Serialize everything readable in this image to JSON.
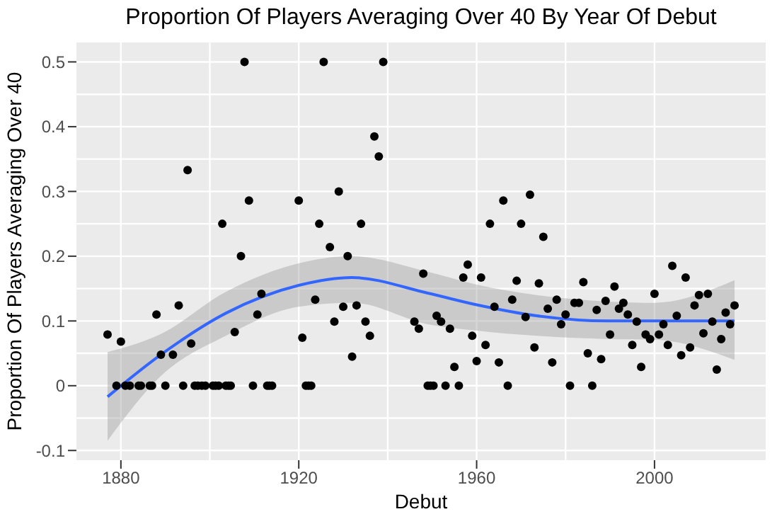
{
  "chart_data": {
    "type": "scatter",
    "title": "Proportion Of Players Averaging Over 40 By Year Of Debut",
    "xlabel": "Debut",
    "ylabel": "Proportion Of Players Averaging Over 40",
    "xlim": [
      1870,
      2025
    ],
    "xticks": [
      1880,
      1920,
      1960,
      2000
    ],
    "ylim": [
      -0.115,
      0.53
    ],
    "yticks": [
      -0.1,
      0,
      0.1,
      0.2,
      0.3,
      0.4,
      0.5
    ],
    "grid": true,
    "marker": "circle",
    "series": [
      {
        "color": "#000000",
        "x": [
          1877,
          1880,
          1879,
          1881,
          1882,
          1884,
          1884.5,
          1886.5,
          1887,
          1890,
          1894,
          1896.6,
          1897.3,
          1898.2,
          1899,
          1900.7,
          1901.3,
          1902,
          1903.6,
          1904.2,
          1904.7,
          1909.7,
          1912.9,
          1913.4,
          1914,
          1921.6,
          1922.2,
          1922.8,
          1888,
          1889,
          1891.7,
          1893,
          1895,
          1895.8,
          1902.8,
          1905.6,
          1907,
          1907.8,
          1908.8,
          1910.7,
          1911.6,
          1920,
          1920.8,
          1923.7,
          1924.6,
          1925.6,
          1927,
          1928,
          1929,
          1930,
          1931,
          1932,
          1933,
          1934,
          1935,
          1936,
          1937,
          1938,
          1939,
          1946,
          1947,
          1948,
          1949,
          1949.6,
          1950.3,
          1951,
          1952,
          1953,
          1954,
          1955,
          1956,
          1957,
          1958,
          1959,
          1960,
          1961,
          1962,
          1963,
          1964,
          1965,
          1966,
          1967,
          1968,
          1969,
          1970,
          1971,
          1972,
          1973,
          1974,
          1975,
          1976,
          1977,
          1978,
          1979,
          1980,
          1981,
          1982,
          1983,
          1984,
          1985,
          1986,
          1987,
          1988,
          1989,
          1990,
          1991,
          1992,
          1993,
          1994,
          1995,
          1996,
          1997,
          1998,
          1999,
          2000,
          2001,
          2002,
          2003,
          2004,
          2005,
          2006,
          2007,
          2008,
          2009,
          2010,
          2011,
          2012,
          2013,
          2014,
          2015,
          2016,
          2017,
          2018
        ],
        "values": [
          0.079,
          0.068,
          0,
          0,
          0,
          0,
          0,
          0,
          0,
          0,
          0,
          0,
          0,
          0,
          0,
          0,
          0,
          0,
          0,
          0,
          0,
          0,
          0,
          0,
          0,
          0,
          0,
          0,
          0.11,
          0.048,
          0.048,
          0.124,
          0.333,
          0.065,
          0.25,
          0.083,
          0.2,
          0.5,
          0.286,
          0.11,
          0.142,
          0.286,
          0.074,
          0.133,
          0.25,
          0.5,
          0.214,
          0.099,
          0.3,
          0.122,
          0.2,
          0.045,
          0.124,
          0.25,
          0.099,
          0.077,
          0.385,
          0.354,
          0.5,
          0.099,
          0.088,
          0.173,
          0,
          0,
          0,
          0.108,
          0.099,
          0,
          0.088,
          0.029,
          0,
          0.167,
          0.187,
          0.077,
          0.038,
          0.167,
          0.063,
          0.25,
          0.122,
          0.036,
          0.286,
          0,
          0.133,
          0.162,
          0.25,
          0.106,
          0.295,
          0.059,
          0.158,
          0.23,
          0.119,
          0.036,
          0.133,
          0.095,
          0.11,
          0,
          0.128,
          0.128,
          0.16,
          0.05,
          0,
          0.117,
          0.041,
          0.131,
          0.079,
          0.153,
          0.119,
          0.128,
          0.11,
          0.063,
          0.099,
          0.029,
          0.079,
          0.072,
          0.142,
          0.079,
          0.095,
          0.063,
          0.185,
          0.108,
          0.047,
          0.167,
          0.059,
          0.124,
          0.14,
          0.081,
          0.142,
          0.099,
          0.025,
          0.072,
          0.113,
          0.095,
          0.124
        ]
      },
      {
        "type": "line",
        "color": "#3366ff",
        "marker": "none",
        "x": [
          1877,
          1889,
          1903.6,
          1920,
          1932,
          1949,
          1960,
          1973.5,
          1989.6,
          2000,
          2018
        ],
        "values": [
          -0.017,
          0.048,
          0.112,
          0.155,
          0.167,
          0.143,
          0.125,
          0.108,
          0.1,
          0.1,
          0.1
        ],
        "lower": [
          -0.085,
          0.015,
          0.077,
          0.122,
          0.128,
          0.095,
          0.085,
          0.077,
          0.072,
          0.071,
          0.04
        ],
        "upper": [
          0.052,
          0.08,
          0.145,
          0.189,
          0.2,
          0.176,
          0.156,
          0.14,
          0.13,
          0.128,
          0.163
        ]
      }
    ]
  }
}
